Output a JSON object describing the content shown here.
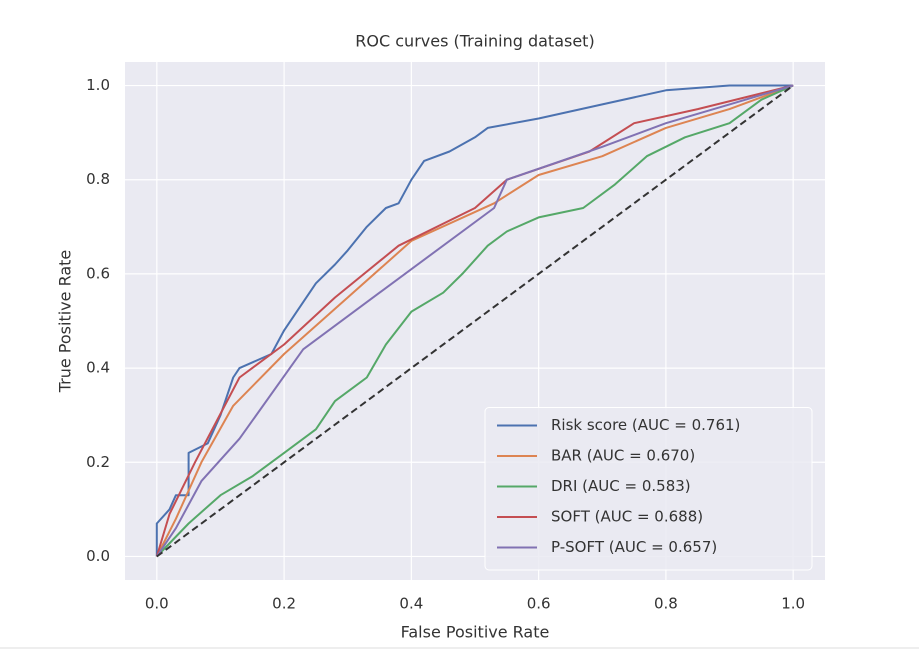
{
  "chart_data": {
    "type": "line",
    "title": "ROC curves (Training dataset)",
    "x_label": "False Positive Rate",
    "y_label": "True Positive Rate",
    "xlim": [
      -0.05,
      1.05
    ],
    "ylim": [
      -0.05,
      1.05
    ],
    "xticks": [
      {
        "value": 0,
        "label": "0.0"
      },
      0.2,
      0.4,
      0.6,
      0.8,
      {
        "value": 1,
        "label": "1.0"
      }
    ],
    "yticks": [
      {
        "value": 0,
        "label": "0.0"
      },
      0.2,
      0.4,
      0.6,
      0.8,
      {
        "value": 1,
        "label": "1.0"
      }
    ],
    "grid": true,
    "legend": "lower right",
    "series": [
      {
        "name": "Risk score (AUC = 0.761)",
        "color": "#4c72b0",
        "x": [
          0,
          0,
          0.02,
          0.03,
          0.05,
          0.05,
          0.08,
          0.1,
          0.12,
          0.13,
          0.18,
          0.2,
          0.22,
          0.25,
          0.28,
          0.3,
          0.33,
          0.36,
          0.38,
          0.4,
          0.42,
          0.46,
          0.5,
          0.52,
          0.6,
          0.7,
          0.8,
          0.9,
          1
        ],
        "values": [
          0,
          0.07,
          0.1,
          0.13,
          0.13,
          0.22,
          0.24,
          0.3,
          0.38,
          0.4,
          0.43,
          0.48,
          0.52,
          0.58,
          0.62,
          0.65,
          0.7,
          0.74,
          0.75,
          0.8,
          0.84,
          0.86,
          0.89,
          0.91,
          0.93,
          0.96,
          0.99,
          1.0,
          1
        ]
      },
      {
        "name": "BAR (AUC = 0.670)",
        "color": "#dd8452",
        "x": [
          0,
          0.03,
          0.07,
          0.12,
          0.2,
          0.3,
          0.4,
          0.53,
          0.6,
          0.7,
          0.8,
          0.9,
          1
        ],
        "values": [
          0,
          0.08,
          0.2,
          0.32,
          0.43,
          0.55,
          0.67,
          0.75,
          0.81,
          0.85,
          0.91,
          0.95,
          1
        ]
      },
      {
        "name": "DRI (AUC = 0.583)",
        "color": "#55a868",
        "x": [
          0,
          0.05,
          0.1,
          0.15,
          0.2,
          0.25,
          0.28,
          0.33,
          0.36,
          0.4,
          0.45,
          0.48,
          0.52,
          0.55,
          0.6,
          0.67,
          0.72,
          0.77,
          0.83,
          0.9,
          0.95,
          1
        ],
        "values": [
          0,
          0.07,
          0.13,
          0.17,
          0.22,
          0.27,
          0.33,
          0.38,
          0.45,
          0.52,
          0.56,
          0.6,
          0.66,
          0.69,
          0.72,
          0.74,
          0.79,
          0.85,
          0.89,
          0.92,
          0.97,
          1
        ]
      },
      {
        "name": "SOFT (AUC = 0.688)",
        "color": "#c44e52",
        "x": [
          0,
          0.02,
          0.06,
          0.13,
          0.2,
          0.28,
          0.38,
          0.5,
          0.55,
          0.68,
          0.75,
          0.85,
          1
        ],
        "values": [
          0,
          0.09,
          0.2,
          0.38,
          0.45,
          0.55,
          0.66,
          0.74,
          0.8,
          0.86,
          0.92,
          0.95,
          1
        ]
      },
      {
        "name": "P-SOFT (AUC = 0.657)",
        "color": "#8172b3",
        "x": [
          0,
          0.03,
          0.07,
          0.13,
          0.23,
          0.35,
          0.53,
          0.55,
          0.7,
          0.8,
          0.9,
          1
        ],
        "values": [
          0,
          0.06,
          0.16,
          0.25,
          0.44,
          0.56,
          0.74,
          0.8,
          0.87,
          0.92,
          0.96,
          1
        ]
      }
    ],
    "diagonal": {
      "x": [
        0,
        1
      ],
      "values": [
        0,
        1
      ],
      "color": "#333333"
    }
  }
}
